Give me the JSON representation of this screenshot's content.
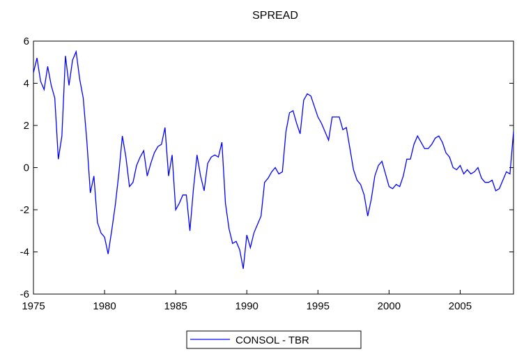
{
  "chart_data": {
    "type": "line",
    "title": "SPREAD",
    "x": [
      1975,
      1975.25,
      1975.5,
      1975.75,
      1976,
      1976.25,
      1976.5,
      1976.75,
      1977,
      1977.25,
      1977.5,
      1977.75,
      1978,
      1978.25,
      1978.5,
      1978.75,
      1979,
      1979.25,
      1979.5,
      1979.75,
      1980,
      1980.25,
      1980.5,
      1980.75,
      1981,
      1981.25,
      1981.5,
      1981.75,
      1982,
      1982.25,
      1982.5,
      1982.75,
      1983,
      1983.25,
      1983.5,
      1983.75,
      1984,
      1984.25,
      1984.5,
      1984.75,
      1985,
      1985.25,
      1985.5,
      1985.75,
      1986,
      1986.25,
      1986.5,
      1986.75,
      1987,
      1987.25,
      1987.5,
      1987.75,
      1988,
      1988.25,
      1988.5,
      1988.75,
      1989,
      1989.25,
      1989.5,
      1989.75,
      1990,
      1990.25,
      1990.5,
      1990.75,
      1991,
      1991.25,
      1991.5,
      1991.75,
      1992,
      1992.25,
      1992.5,
      1992.75,
      1993,
      1993.25,
      1993.5,
      1993.75,
      1994,
      1994.25,
      1994.5,
      1994.75,
      1995,
      1995.25,
      1995.5,
      1995.75,
      1996,
      1996.25,
      1996.5,
      1996.75,
      1997,
      1997.25,
      1997.5,
      1997.75,
      1998,
      1998.25,
      1998.5,
      1998.75,
      1999,
      1999.25,
      1999.5,
      1999.75,
      2000,
      2000.25,
      2000.5,
      2000.75,
      2001,
      2001.25,
      2001.5,
      2001.75,
      2002,
      2002.25,
      2002.5,
      2002.75,
      2003,
      2003.25,
      2003.5,
      2003.75,
      2004,
      2004.25,
      2004.5,
      2004.75,
      2005,
      2005.25,
      2005.5,
      2005.75,
      2006,
      2006.25,
      2006.5,
      2006.75,
      2007,
      2007.25,
      2007.5,
      2007.75,
      2008,
      2008.25,
      2008.5,
      2008.75
    ],
    "series": [
      {
        "name": "CONSOL - TBR",
        "color": "#0000ff",
        "values": [
          4.5,
          5.2,
          4.1,
          3.7,
          4.8,
          3.9,
          3.3,
          0.4,
          1.5,
          5.3,
          3.9,
          5.1,
          5.5,
          4.2,
          3.3,
          1.3,
          -1.2,
          -0.4,
          -2.6,
          -3.1,
          -3.3,
          -4.1,
          -3.0,
          -1.8,
          -0.3,
          1.5,
          0.5,
          -0.9,
          -0.7,
          0.1,
          0.5,
          0.8,
          -0.4,
          0.2,
          0.7,
          1.0,
          1.1,
          1.9,
          -0.4,
          0.6,
          -2.0,
          -1.7,
          -1.3,
          -1.3,
          -3.0,
          -1.0,
          0.6,
          -0.4,
          -1.1,
          0.2,
          0.5,
          0.6,
          0.5,
          1.2,
          -1.7,
          -2.9,
          -3.6,
          -3.5,
          -3.9,
          -4.8,
          -3.2,
          -3.8,
          -3.1,
          -2.7,
          -2.3,
          -0.7,
          -0.5,
          -0.2,
          0.0,
          -0.3,
          -0.2,
          1.7,
          2.6,
          2.7,
          2.1,
          1.6,
          3.2,
          3.5,
          3.4,
          2.9,
          2.4,
          2.1,
          1.7,
          1.3,
          2.4,
          2.4,
          2.4,
          1.8,
          1.9,
          0.9,
          -0.1,
          -0.6,
          -0.8,
          -1.3,
          -2.3,
          -1.5,
          -0.4,
          0.1,
          0.3,
          -0.3,
          -0.9,
          -1.0,
          -0.8,
          -0.9,
          -0.4,
          0.4,
          0.4,
          1.1,
          1.5,
          1.2,
          0.9,
          0.9,
          1.1,
          1.4,
          1.5,
          1.2,
          0.7,
          0.5,
          0.0,
          -0.1,
          0.1,
          -0.3,
          -0.1,
          -0.3,
          -0.2,
          0.0,
          -0.5,
          -0.7,
          -0.7,
          -0.6,
          -1.1,
          -1.0,
          -0.6,
          -0.2,
          -0.3,
          1.7
        ]
      }
    ],
    "xlim": [
      1975,
      2008.75
    ],
    "xticks": [
      1975,
      1980,
      1985,
      1990,
      1995,
      2000,
      2005
    ],
    "ylim": [
      -6,
      6
    ],
    "yticks": [
      -6,
      -4,
      -2,
      0,
      2,
      4,
      6
    ],
    "legend": "bottom"
  }
}
